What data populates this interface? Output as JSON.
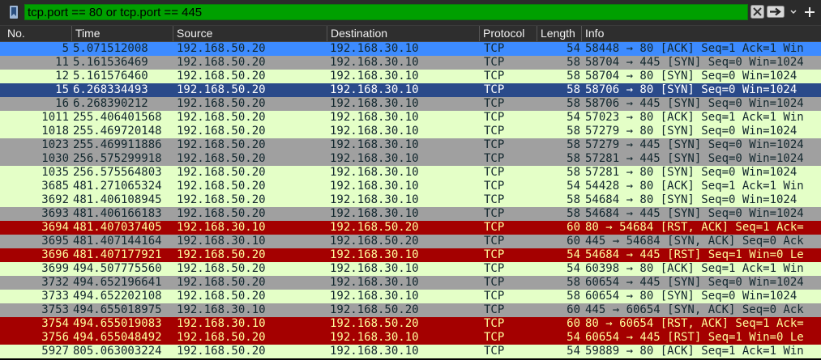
{
  "filter": {
    "expression": "tcp.port == 80 or tcp.port == 445"
  },
  "icons": {
    "bookmark": "bookmark-icon",
    "clear": "clear-filter-icon",
    "apply": "apply-filter-arrow-icon",
    "dropdown": "chevron-down-icon",
    "add": "plus-icon"
  },
  "columns": {
    "no": "No.",
    "time": "Time",
    "source": "Source",
    "destination": "Destination",
    "protocol": "Protocol",
    "length": "Length",
    "info": "Info"
  },
  "colors": {
    "selected_bg": "#3d8bff",
    "blue_bg": "#2a4a8a",
    "green_bg": "#e4ffc7",
    "gray_bg": "#a0a0a0",
    "red_bg": "#a40000",
    "red_fg": "#fffc9c",
    "dark_fg": "#12272e",
    "light_fg": "#ffffff"
  },
  "packets": [
    {
      "no": "5",
      "time": "5.071512008",
      "source": "192.168.50.20",
      "destination": "192.168.30.10",
      "protocol": "TCP",
      "length": "54",
      "info": "58448 → 80 [ACK] Seq=1 Ack=1 Win",
      "style": "selected"
    },
    {
      "no": "11",
      "time": "5.161536469",
      "source": "192.168.50.20",
      "destination": "192.168.30.10",
      "protocol": "TCP",
      "length": "58",
      "info": "58704 → 445 [SYN] Seq=0 Win=1024",
      "style": "gray"
    },
    {
      "no": "12",
      "time": "5.161576460",
      "source": "192.168.50.20",
      "destination": "192.168.30.10",
      "protocol": "TCP",
      "length": "58",
      "info": "58704 → 80 [SYN] Seq=0 Win=1024",
      "style": "green"
    },
    {
      "no": "15",
      "time": "6.268334493",
      "source": "192.168.50.20",
      "destination": "192.168.30.10",
      "protocol": "TCP",
      "length": "58",
      "info": "58706 → 80 [SYN] Seq=0 Win=1024",
      "style": "blue"
    },
    {
      "no": "16",
      "time": "6.268390212",
      "source": "192.168.50.20",
      "destination": "192.168.30.10",
      "protocol": "TCP",
      "length": "58",
      "info": "58706 → 445 [SYN] Seq=0 Win=1024",
      "style": "gray"
    },
    {
      "no": "1011",
      "time": "255.406401568",
      "source": "192.168.50.20",
      "destination": "192.168.30.10",
      "protocol": "TCP",
      "length": "54",
      "info": "57023 → 80 [ACK] Seq=1 Ack=1 Win",
      "style": "green"
    },
    {
      "no": "1018",
      "time": "255.469720148",
      "source": "192.168.50.20",
      "destination": "192.168.30.10",
      "protocol": "TCP",
      "length": "58",
      "info": "57279 → 80 [SYN] Seq=0 Win=1024",
      "style": "green"
    },
    {
      "no": "1023",
      "time": "255.469911886",
      "source": "192.168.50.20",
      "destination": "192.168.30.10",
      "protocol": "TCP",
      "length": "58",
      "info": "57279 → 445 [SYN] Seq=0 Win=1024",
      "style": "gray"
    },
    {
      "no": "1030",
      "time": "256.575299918",
      "source": "192.168.50.20",
      "destination": "192.168.30.10",
      "protocol": "TCP",
      "length": "58",
      "info": "57281 → 445 [SYN] Seq=0 Win=1024",
      "style": "gray"
    },
    {
      "no": "1035",
      "time": "256.575564803",
      "source": "192.168.50.20",
      "destination": "192.168.30.10",
      "protocol": "TCP",
      "length": "58",
      "info": "57281 → 80 [SYN] Seq=0 Win=1024",
      "style": "green"
    },
    {
      "no": "3685",
      "time": "481.271065324",
      "source": "192.168.50.20",
      "destination": "192.168.30.10",
      "protocol": "TCP",
      "length": "54",
      "info": "54428 → 80 [ACK] Seq=1 Ack=1 Win",
      "style": "green"
    },
    {
      "no": "3692",
      "time": "481.406108945",
      "source": "192.168.50.20",
      "destination": "192.168.30.10",
      "protocol": "TCP",
      "length": "58",
      "info": "54684 → 80 [SYN] Seq=0 Win=1024",
      "style": "green"
    },
    {
      "no": "3693",
      "time": "481.406166183",
      "source": "192.168.50.20",
      "destination": "192.168.30.10",
      "protocol": "TCP",
      "length": "58",
      "info": "54684 → 445 [SYN] Seq=0 Win=1024",
      "style": "gray"
    },
    {
      "no": "3694",
      "time": "481.407037405",
      "source": "192.168.30.10",
      "destination": "192.168.50.20",
      "protocol": "TCP",
      "length": "60",
      "info": "80 → 54684 [RST, ACK] Seq=1 Ack=",
      "style": "red"
    },
    {
      "no": "3695",
      "time": "481.407144164",
      "source": "192.168.30.10",
      "destination": "192.168.50.20",
      "protocol": "TCP",
      "length": "60",
      "info": "445 → 54684 [SYN, ACK] Seq=0 Ack",
      "style": "gray"
    },
    {
      "no": "3696",
      "time": "481.407177921",
      "source": "192.168.50.20",
      "destination": "192.168.30.10",
      "protocol": "TCP",
      "length": "54",
      "info": "54684 → 445 [RST] Seq=1 Win=0 Le",
      "style": "red"
    },
    {
      "no": "3699",
      "time": "494.507775560",
      "source": "192.168.50.20",
      "destination": "192.168.30.10",
      "protocol": "TCP",
      "length": "54",
      "info": "60398 → 80 [ACK] Seq=1 Ack=1 Win",
      "style": "green"
    },
    {
      "no": "3732",
      "time": "494.652196641",
      "source": "192.168.50.20",
      "destination": "192.168.30.10",
      "protocol": "TCP",
      "length": "58",
      "info": "60654 → 445 [SYN] Seq=0 Win=1024",
      "style": "gray"
    },
    {
      "no": "3733",
      "time": "494.652202108",
      "source": "192.168.50.20",
      "destination": "192.168.30.10",
      "protocol": "TCP",
      "length": "58",
      "info": "60654 → 80 [SYN] Seq=0 Win=1024",
      "style": "green"
    },
    {
      "no": "3753",
      "time": "494.655018975",
      "source": "192.168.30.10",
      "destination": "192.168.50.20",
      "protocol": "TCP",
      "length": "60",
      "info": "445 → 60654 [SYN, ACK] Seq=0 Ack",
      "style": "gray"
    },
    {
      "no": "3754",
      "time": "494.655019083",
      "source": "192.168.30.10",
      "destination": "192.168.50.20",
      "protocol": "TCP",
      "length": "60",
      "info": "80 → 60654 [RST, ACK] Seq=1 Ack=",
      "style": "red"
    },
    {
      "no": "3756",
      "time": "494.655048492",
      "source": "192.168.50.20",
      "destination": "192.168.30.10",
      "protocol": "TCP",
      "length": "54",
      "info": "60654 → 445 [RST] Seq=1 Win=0 Le",
      "style": "red"
    },
    {
      "no": "5927",
      "time": "805.063003224",
      "source": "192.168.50.20",
      "destination": "192.168.30.10",
      "protocol": "TCP",
      "length": "54",
      "info": "59889 → 80 [ACK] Seq=1 Ack=1 Win",
      "style": "green"
    }
  ]
}
